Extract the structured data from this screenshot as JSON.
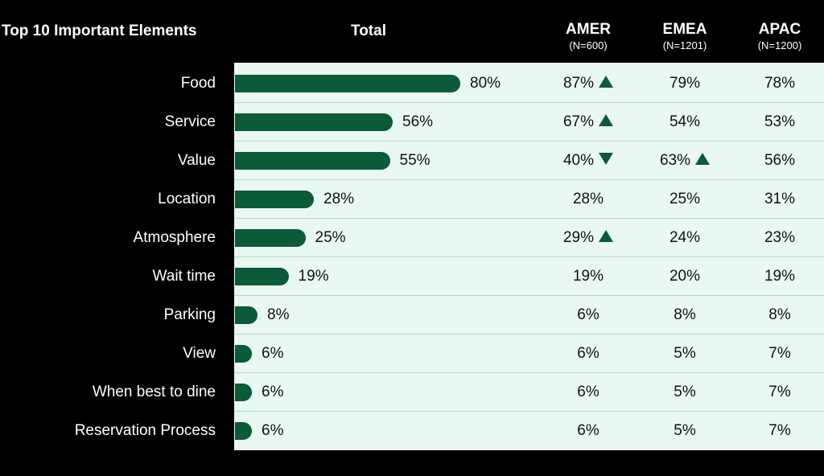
{
  "header": {
    "title": "Top 10 Important Elements",
    "total": "Total",
    "regions": [
      {
        "name": "AMER",
        "n": "(N=600)"
      },
      {
        "name": "EMEA",
        "n": "(N=1201)"
      },
      {
        "name": "APAC",
        "n": "(N=1200)"
      }
    ]
  },
  "colors": {
    "bar": "#0b5a38",
    "panel": "#e9f8f2",
    "background": "#000000"
  },
  "chart_data": {
    "type": "bar",
    "orientation": "horizontal",
    "title": "Top 10 Important Elements",
    "xlim": [
      0,
      100
    ],
    "categories": [
      "Food",
      "Service",
      "Value",
      "Location",
      "Atmosphere",
      "Wait time",
      "Parking",
      "View",
      "When best to dine",
      "Reservation Process"
    ],
    "values": [
      80,
      56,
      55,
      28,
      25,
      19,
      8,
      6,
      6,
      6
    ],
    "value_labels": [
      "80%",
      "56%",
      "55%",
      "28%",
      "25%",
      "19%",
      "8%",
      "6%",
      "6%",
      "6%"
    ],
    "table_columns": [
      {
        "name": "AMER",
        "values": [
          "87%",
          "67%",
          "40%",
          "28%",
          "29%",
          "19%",
          "6%",
          "6%",
          "6%",
          "6%"
        ],
        "arrows": [
          "up",
          "up",
          "down",
          "",
          "up",
          "",
          "",
          "",
          "",
          ""
        ]
      },
      {
        "name": "EMEA",
        "values": [
          "79%",
          "54%",
          "63%",
          "25%",
          "24%",
          "20%",
          "8%",
          "5%",
          "5%",
          "5%"
        ],
        "arrows": [
          "",
          "",
          "up",
          "",
          "",
          "",
          "",
          "",
          "",
          ""
        ]
      },
      {
        "name": "APAC",
        "values": [
          "78%",
          "53%",
          "56%",
          "31%",
          "23%",
          "19%",
          "8%",
          "7%",
          "7%",
          "7%"
        ],
        "arrows": [
          "",
          "",
          "",
          "",
          "",
          "",
          "",
          "",
          "",
          ""
        ]
      }
    ]
  }
}
